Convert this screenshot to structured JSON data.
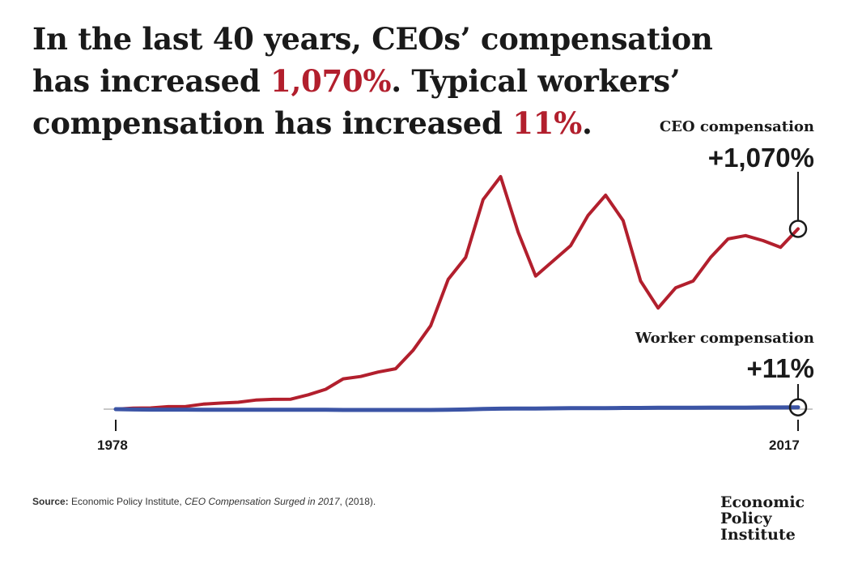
{
  "headline": {
    "part1": "In the last 40 years, CEOs’ compensation has increased ",
    "ceo_pct": "1,070%",
    "part2": ". Typical workers’ compensation has increased ",
    "worker_pct": "11%",
    "part3": "."
  },
  "colors": {
    "ceo": "#b21f2d",
    "worker": "#3b54a5",
    "baseline": "#c8c8c8",
    "highlight": "#b21f2d"
  },
  "annotations": {
    "ceo_label": "CEO compensation",
    "ceo_value": "+1,070%",
    "worker_label": "Worker compensation",
    "worker_value": "+11%"
  },
  "axis": {
    "start_label": "1978",
    "end_label": "2017"
  },
  "source": {
    "prefix": "Source:",
    "text": " Economic Policy Institute, ",
    "title": "CEO Compensation Surged in 2017",
    "suffix": ", (2018)."
  },
  "logo": {
    "line1": "Economic",
    "line2": "Policy",
    "line3": "Institute"
  },
  "chart_data": {
    "type": "line",
    "x": [
      1978,
      1979,
      1980,
      1981,
      1982,
      1983,
      1984,
      1985,
      1986,
      1987,
      1988,
      1989,
      1990,
      1991,
      1992,
      1993,
      1994,
      1995,
      1996,
      1997,
      1998,
      1999,
      2000,
      2001,
      2002,
      2003,
      2004,
      2005,
      2006,
      2007,
      2008,
      2009,
      2010,
      2011,
      2012,
      2013,
      2014,
      2015,
      2016,
      2017
    ],
    "series": [
      {
        "name": "CEO compensation",
        "values": [
          0,
          6,
          7,
          15,
          16,
          30,
          36,
          41,
          54,
          58,
          59,
          85,
          118,
          180,
          194,
          220,
          240,
          350,
          495,
          770,
          900,
          1244,
          1380,
          1050,
          790,
          880,
          970,
          1150,
          1270,
          1120,
          760,
          600,
          720,
          760,
          900,
          1010,
          1030,
          1000,
          960,
          1070
        ]
      },
      {
        "name": "Worker compensation",
        "values": [
          0,
          -2,
          -3,
          -3,
          -3,
          -4,
          -4,
          -4,
          -4,
          -4,
          -4,
          -4,
          -4,
          -5,
          -5,
          -5,
          -5,
          -5,
          -5,
          -4,
          -2,
          1,
          3,
          4,
          4,
          5,
          6,
          6,
          6,
          7,
          7,
          8,
          8,
          8,
          9,
          9,
          9,
          10,
          10,
          11
        ]
      }
    ],
    "xlabel": "",
    "ylabel": "",
    "xlim": [
      1978,
      2017
    ],
    "ylim": [
      -10,
      1400
    ],
    "grid": false,
    "legend": "none"
  }
}
